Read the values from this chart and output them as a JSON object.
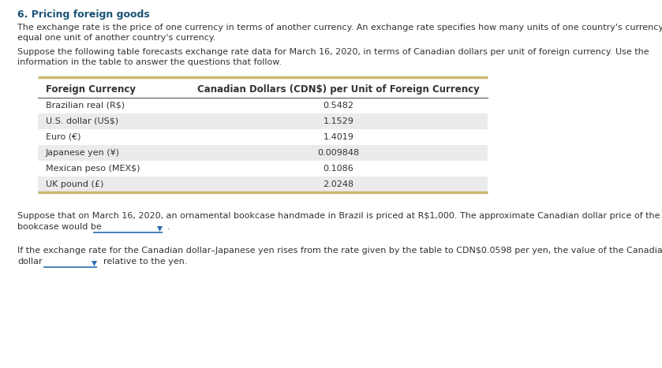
{
  "title": "6. Pricing foreign goods",
  "title_color": "#1a5276",
  "background_color": "#ffffff",
  "para1_line1": "The exchange rate is the price of one currency in terms of another currency. An exchange rate specifies how many units of one country's currency",
  "para1_line2": "equal one unit of another country's currency.",
  "para2_line1": "Suppose the following table forecasts exchange rate data for March 16, 2020, in terms of Canadian dollars per unit of foreign currency. Use the",
  "para2_line2": "information in the table to answer the questions that follow.",
  "table_header": [
    "Foreign Currency",
    "Canadian Dollars (CDN$) per Unit of Foreign Currency"
  ],
  "table_rows": [
    [
      "Brazilian real (R$)",
      "0.5482"
    ],
    [
      "U.S. dollar (US$)",
      "1.1529"
    ],
    [
      "Euro (€)",
      "1.4019"
    ],
    [
      "Japanese yen (¥)",
      "0.009848"
    ],
    [
      "Mexican peso (MEX$)",
      "0.1086"
    ],
    [
      "UK pound (£)",
      "2.0248"
    ]
  ],
  "row_shade_color": "#ebebeb",
  "table_border_color": "#c8b870",
  "header_line_color": "#555555",
  "para3_line1": "Suppose that on March 16, 2020, an ornamental bookcase handmade in Brazil is priced at R$1,000. The approximate Canadian dollar price of the",
  "para3_line2": "bookcase would be",
  "para4_line1": "If the exchange rate for the Canadian dollar–Japanese yen rises from the rate given by the table to CDN$0.0598 per yen, the value of the Canadian",
  "para4_line2_pre": "dollar",
  "para4_line2_post": "relative to the yen.",
  "dropdown_color": "#2b6cb0",
  "text_color": "#333333",
  "text_fontsize": 8.0,
  "header_fontsize": 8.5,
  "title_fontsize": 9.0
}
